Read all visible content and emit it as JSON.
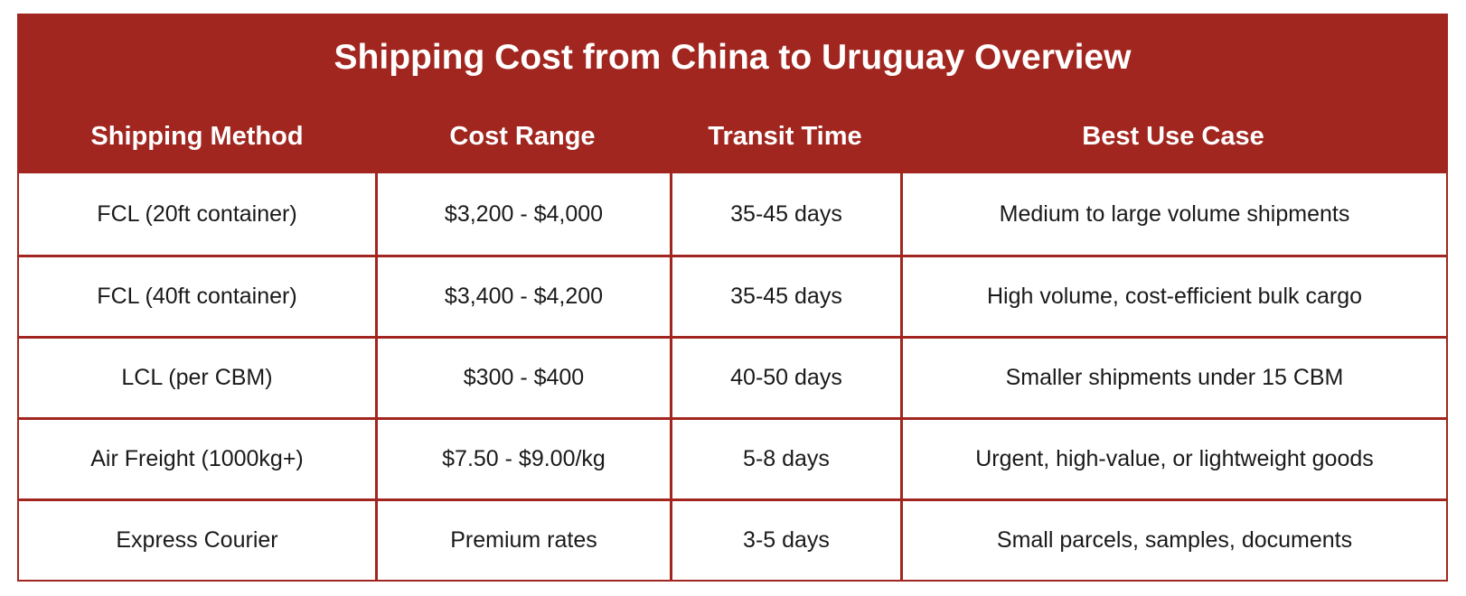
{
  "table": {
    "title": "Shipping Cost from China to Uruguay Overview",
    "headers": [
      "Shipping Method",
      "Cost Range",
      "Transit Time",
      "Best Use Case"
    ],
    "rows": [
      [
        "FCL (20ft container)",
        "$3,200 - $4,000",
        "35-45 days",
        "Medium to large volume shipments"
      ],
      [
        "FCL (40ft container)",
        "$3,400 - $4,200",
        "35-45 days",
        "High volume, cost-efficient bulk cargo"
      ],
      [
        "LCL (per CBM)",
        "$300 - $400",
        "40-50 days",
        "Smaller shipments under 15 CBM"
      ],
      [
        "Air Freight (1000kg+)",
        "$7.50 - $9.00/kg",
        "5-8 days",
        "Urgent, high-value, or lightweight goods"
      ],
      [
        "Express Courier",
        "Premium rates",
        "3-5 days",
        "Small parcels, samples, documents"
      ]
    ]
  },
  "colors": {
    "accent": "#a1261f",
    "header_text": "#ffffff",
    "body_text": "#1a1a1a",
    "background": "#ffffff"
  }
}
